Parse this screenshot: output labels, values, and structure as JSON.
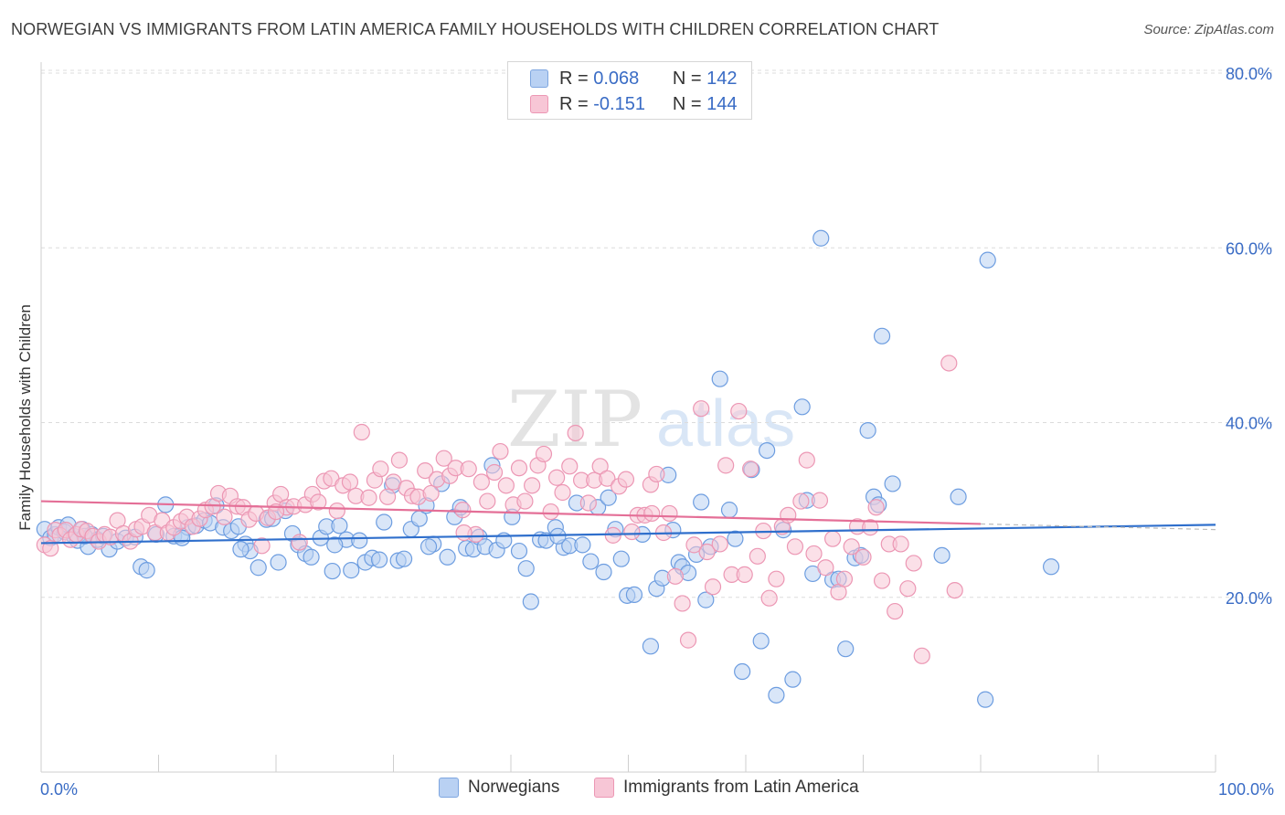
{
  "title": "NORWEGIAN VS IMMIGRANTS FROM LATIN AMERICA FAMILY HOUSEHOLDS WITH CHILDREN CORRELATION CHART",
  "source": "Source: ZipAtlas.com",
  "watermark": {
    "part1": "ZIP",
    "part2": "atlas"
  },
  "legend": {
    "rows": [
      {
        "r_label": "R =",
        "r_value": "0.068",
        "n_label": "N =",
        "n_value": "142",
        "fill": "#b9d1f3",
        "stroke": "#7ea6e0"
      },
      {
        "r_label": "R =",
        "r_value": "-0.151",
        "n_label": "N =",
        "n_value": "144",
        "fill": "#f7c6d6",
        "stroke": "#ec97b4"
      }
    ]
  },
  "bottom_legend": [
    "Norwegians",
    "Immigrants from Latin America"
  ],
  "chart_data": {
    "type": "scatter",
    "title": "NORWEGIAN VS IMMIGRANTS FROM LATIN AMERICA FAMILY HOUSEHOLDS WITH CHILDREN CORRELATION CHART",
    "xlabel": "",
    "ylabel": "Family Households with Children",
    "xlim": [
      0,
      100
    ],
    "ylim": [
      0,
      80
    ],
    "x_tick_labels": [
      "0.0%",
      "100.0%"
    ],
    "y_ticks": [
      20,
      40,
      60,
      80
    ],
    "y_tick_labels": [
      "20.0%",
      "40.0%",
      "60.0%",
      "80.0%"
    ],
    "grid": true,
    "colors": {
      "blue": "#6d9de0",
      "blue_fill": "#b9d1f3",
      "blue_line": "#2f6fcc",
      "pink": "#ec97b4",
      "pink_fill": "#f7c6d6",
      "pink_line": "#e46f97",
      "axis_text": "#3a6cc5"
    },
    "series": [
      {
        "name": "Norwegians",
        "trend": {
          "x0": 0,
          "y0": 26.2,
          "x1": 100,
          "y1": 28.3
        },
        "points": [
          [
            0.3,
            27.8
          ],
          [
            0.8,
            26.8
          ],
          [
            1.2,
            27.2
          ],
          [
            1.5,
            28.0
          ],
          [
            2.0,
            27.5
          ],
          [
            2.3,
            28.3
          ],
          [
            2.8,
            27.0
          ],
          [
            3.1,
            26.5
          ],
          [
            3.5,
            27.8
          ],
          [
            4.0,
            25.8
          ],
          [
            4.3,
            27.2
          ],
          [
            4.8,
            26.6
          ],
          [
            5.3,
            27.0
          ],
          [
            5.8,
            25.5
          ],
          [
            6.5,
            26.4
          ],
          [
            7.2,
            26.8
          ],
          [
            8.0,
            26.9
          ],
          [
            8.5,
            23.5
          ],
          [
            9.0,
            23.1
          ],
          [
            9.8,
            27.2
          ],
          [
            10.6,
            30.6
          ],
          [
            11.3,
            27.0
          ],
          [
            11.9,
            27.1
          ],
          [
            12.5,
            28.0
          ],
          [
            13.2,
            28.2
          ],
          [
            13.9,
            28.8
          ],
          [
            14.4,
            28.5
          ],
          [
            14.9,
            30.5
          ],
          [
            15.5,
            28.0
          ],
          [
            16.2,
            27.6
          ],
          [
            16.8,
            28.1
          ],
          [
            17.4,
            26.1
          ],
          [
            17.8,
            25.3
          ],
          [
            18.5,
            23.4
          ],
          [
            19.2,
            28.9
          ],
          [
            19.7,
            29.0
          ],
          [
            20.2,
            24.0
          ],
          [
            20.8,
            29.9
          ],
          [
            21.4,
            27.3
          ],
          [
            21.9,
            26.0
          ],
          [
            22.5,
            25.0
          ],
          [
            23.0,
            24.6
          ],
          [
            23.8,
            26.8
          ],
          [
            24.3,
            28.1
          ],
          [
            24.8,
            23.0
          ],
          [
            25.4,
            28.2
          ],
          [
            26.0,
            26.6
          ],
          [
            26.4,
            23.1
          ],
          [
            27.1,
            26.5
          ],
          [
            27.6,
            24.0
          ],
          [
            28.2,
            24.5
          ],
          [
            28.8,
            24.3
          ],
          [
            29.2,
            28.6
          ],
          [
            29.9,
            32.8
          ],
          [
            30.4,
            24.2
          ],
          [
            30.9,
            24.4
          ],
          [
            31.5,
            27.8
          ],
          [
            32.2,
            29.0
          ],
          [
            32.8,
            30.5
          ],
          [
            33.4,
            26.1
          ],
          [
            34.1,
            33.0
          ],
          [
            34.6,
            24.6
          ],
          [
            35.2,
            29.2
          ],
          [
            35.7,
            30.3
          ],
          [
            36.2,
            25.6
          ],
          [
            36.8,
            25.5
          ],
          [
            37.3,
            26.9
          ],
          [
            37.8,
            25.8
          ],
          [
            38.4,
            35.1
          ],
          [
            38.8,
            25.4
          ],
          [
            39.4,
            26.5
          ],
          [
            40.1,
            29.2
          ],
          [
            40.7,
            25.3
          ],
          [
            41.3,
            23.3
          ],
          [
            41.7,
            19.5
          ],
          [
            42.5,
            26.6
          ],
          [
            43.0,
            26.5
          ],
          [
            43.8,
            28.0
          ],
          [
            44.5,
            25.7
          ],
          [
            45.0,
            25.9
          ],
          [
            45.6,
            30.8
          ],
          [
            46.1,
            26.0
          ],
          [
            46.8,
            24.1
          ],
          [
            47.4,
            30.3
          ],
          [
            47.9,
            22.9
          ],
          [
            48.3,
            31.4
          ],
          [
            48.9,
            27.8
          ],
          [
            49.4,
            24.4
          ],
          [
            49.9,
            20.2
          ],
          [
            50.5,
            20.3
          ],
          [
            51.2,
            27.2
          ],
          [
            51.9,
            14.4
          ],
          [
            52.4,
            21.0
          ],
          [
            52.9,
            22.2
          ],
          [
            53.4,
            34.0
          ],
          [
            53.8,
            27.7
          ],
          [
            54.3,
            24.0
          ],
          [
            54.6,
            23.5
          ],
          [
            55.1,
            22.8
          ],
          [
            55.8,
            24.9
          ],
          [
            56.2,
            30.9
          ],
          [
            56.6,
            19.7
          ],
          [
            57.0,
            25.8
          ],
          [
            57.8,
            45.0
          ],
          [
            58.6,
            30.0
          ],
          [
            59.1,
            26.7
          ],
          [
            59.7,
            11.5
          ],
          [
            60.5,
            34.6
          ],
          [
            61.3,
            15.0
          ],
          [
            61.8,
            36.8
          ],
          [
            62.6,
            8.8
          ],
          [
            63.2,
            27.7
          ],
          [
            64.0,
            10.6
          ],
          [
            64.8,
            41.8
          ],
          [
            65.2,
            31.1
          ],
          [
            65.7,
            22.7
          ],
          [
            66.4,
            61.1
          ],
          [
            67.4,
            22.0
          ],
          [
            67.9,
            22.1
          ],
          [
            68.5,
            14.1
          ],
          [
            69.3,
            24.5
          ],
          [
            69.8,
            24.8
          ],
          [
            70.4,
            39.1
          ],
          [
            70.9,
            31.5
          ],
          [
            71.3,
            30.6
          ],
          [
            71.6,
            49.9
          ],
          [
            72.5,
            33.0
          ],
          [
            76.7,
            24.8
          ],
          [
            78.1,
            31.5
          ],
          [
            80.4,
            8.3
          ],
          [
            80.6,
            58.6
          ],
          [
            86.0,
            23.5
          ],
          [
            3.7,
            27.0
          ],
          [
            12.0,
            26.8
          ],
          [
            17.0,
            25.5
          ],
          [
            25.0,
            26.0
          ],
          [
            33.0,
            25.8
          ],
          [
            44.0,
            27.0
          ]
        ]
      },
      {
        "name": "Immigrants from Latin America",
        "trend": {
          "x0": 0,
          "y0": 31.0,
          "x1": 80,
          "y1": 28.4
        },
        "points": [
          [
            0.3,
            26.0
          ],
          [
            0.8,
            25.6
          ],
          [
            1.2,
            27.7
          ],
          [
            1.6,
            27.1
          ],
          [
            2.1,
            27.7
          ],
          [
            2.5,
            26.6
          ],
          [
            3.0,
            27.2
          ],
          [
            3.4,
            27.8
          ],
          [
            3.9,
            27.6
          ],
          [
            4.4,
            27.0
          ],
          [
            4.9,
            26.4
          ],
          [
            5.4,
            27.2
          ],
          [
            5.9,
            26.9
          ],
          [
            6.5,
            28.8
          ],
          [
            7.0,
            27.3
          ],
          [
            7.6,
            26.4
          ],
          [
            8.1,
            27.8
          ],
          [
            8.6,
            28.1
          ],
          [
            9.2,
            29.4
          ],
          [
            9.7,
            27.4
          ],
          [
            10.3,
            28.8
          ],
          [
            10.8,
            27.4
          ],
          [
            11.3,
            28.0
          ],
          [
            11.9,
            28.7
          ],
          [
            12.4,
            29.2
          ],
          [
            12.9,
            28.1
          ],
          [
            13.5,
            29.0
          ],
          [
            14.0,
            30.0
          ],
          [
            14.6,
            30.4
          ],
          [
            15.1,
            31.9
          ],
          [
            15.6,
            29.2
          ],
          [
            16.1,
            31.6
          ],
          [
            16.7,
            30.4
          ],
          [
            17.2,
            30.3
          ],
          [
            17.7,
            28.9
          ],
          [
            18.3,
            29.6
          ],
          [
            18.8,
            25.9
          ],
          [
            19.3,
            29.1
          ],
          [
            19.9,
            30.8
          ],
          [
            20.4,
            31.8
          ],
          [
            20.9,
            30.3
          ],
          [
            21.5,
            30.4
          ],
          [
            22.0,
            26.3
          ],
          [
            22.5,
            30.6
          ],
          [
            23.1,
            31.8
          ],
          [
            23.6,
            30.9
          ],
          [
            24.1,
            33.3
          ],
          [
            24.7,
            33.6
          ],
          [
            25.2,
            29.9
          ],
          [
            25.7,
            32.8
          ],
          [
            26.3,
            33.2
          ],
          [
            26.8,
            31.6
          ],
          [
            27.3,
            38.9
          ],
          [
            27.9,
            31.4
          ],
          [
            28.4,
            33.4
          ],
          [
            28.9,
            34.7
          ],
          [
            29.5,
            31.5
          ],
          [
            30.0,
            33.2
          ],
          [
            30.5,
            35.7
          ],
          [
            31.1,
            32.5
          ],
          [
            31.6,
            31.6
          ],
          [
            32.1,
            31.5
          ],
          [
            32.7,
            34.5
          ],
          [
            33.2,
            31.9
          ],
          [
            33.7,
            33.5
          ],
          [
            34.3,
            35.9
          ],
          [
            34.8,
            33.9
          ],
          [
            35.3,
            34.8
          ],
          [
            35.9,
            30.0
          ],
          [
            36.4,
            34.7
          ],
          [
            37.0,
            27.2
          ],
          [
            37.5,
            33.2
          ],
          [
            38.0,
            31.0
          ],
          [
            38.6,
            34.3
          ],
          [
            39.1,
            36.7
          ],
          [
            39.6,
            32.8
          ],
          [
            40.2,
            30.6
          ],
          [
            40.7,
            34.8
          ],
          [
            41.2,
            31.0
          ],
          [
            41.8,
            32.8
          ],
          [
            42.3,
            35.1
          ],
          [
            42.8,
            36.4
          ],
          [
            43.4,
            29.8
          ],
          [
            43.9,
            33.7
          ],
          [
            44.4,
            32.0
          ],
          [
            45.0,
            35.0
          ],
          [
            45.5,
            38.8
          ],
          [
            46.0,
            33.4
          ],
          [
            46.6,
            30.8
          ],
          [
            47.1,
            33.4
          ],
          [
            47.6,
            35.0
          ],
          [
            48.2,
            33.6
          ],
          [
            48.7,
            27.1
          ],
          [
            49.2,
            32.7
          ],
          [
            49.8,
            33.5
          ],
          [
            50.3,
            27.5
          ],
          [
            50.8,
            29.4
          ],
          [
            51.4,
            29.4
          ],
          [
            51.9,
            32.9
          ],
          [
            52.4,
            34.1
          ],
          [
            53.0,
            27.4
          ],
          [
            53.5,
            29.6
          ],
          [
            54.0,
            22.4
          ],
          [
            54.6,
            19.3
          ],
          [
            55.1,
            15.1
          ],
          [
            55.6,
            26.0
          ],
          [
            56.2,
            41.6
          ],
          [
            56.7,
            25.2
          ],
          [
            57.2,
            21.2
          ],
          [
            57.8,
            26.1
          ],
          [
            58.3,
            35.1
          ],
          [
            58.8,
            22.6
          ],
          [
            59.4,
            41.3
          ],
          [
            59.9,
            22.6
          ],
          [
            60.4,
            34.7
          ],
          [
            61.0,
            24.7
          ],
          [
            61.5,
            27.6
          ],
          [
            62.0,
            19.9
          ],
          [
            62.6,
            22.1
          ],
          [
            63.1,
            28.1
          ],
          [
            63.6,
            29.4
          ],
          [
            64.2,
            25.8
          ],
          [
            64.7,
            31.0
          ],
          [
            65.2,
            35.7
          ],
          [
            65.8,
            25.0
          ],
          [
            66.3,
            31.1
          ],
          [
            66.8,
            23.4
          ],
          [
            67.4,
            26.7
          ],
          [
            67.9,
            20.6
          ],
          [
            68.4,
            22.1
          ],
          [
            69.0,
            25.8
          ],
          [
            69.5,
            28.1
          ],
          [
            70.0,
            24.6
          ],
          [
            70.6,
            28.0
          ],
          [
            71.1,
            30.3
          ],
          [
            71.6,
            21.9
          ],
          [
            72.2,
            26.1
          ],
          [
            72.7,
            18.4
          ],
          [
            73.2,
            26.1
          ],
          [
            73.8,
            21.0
          ],
          [
            74.3,
            23.9
          ],
          [
            75.0,
            13.3
          ],
          [
            77.3,
            46.8
          ],
          [
            77.8,
            20.8
          ],
          [
            20.0,
            29.8
          ],
          [
            36.0,
            27.4
          ],
          [
            52.0,
            29.6
          ]
        ]
      }
    ]
  }
}
